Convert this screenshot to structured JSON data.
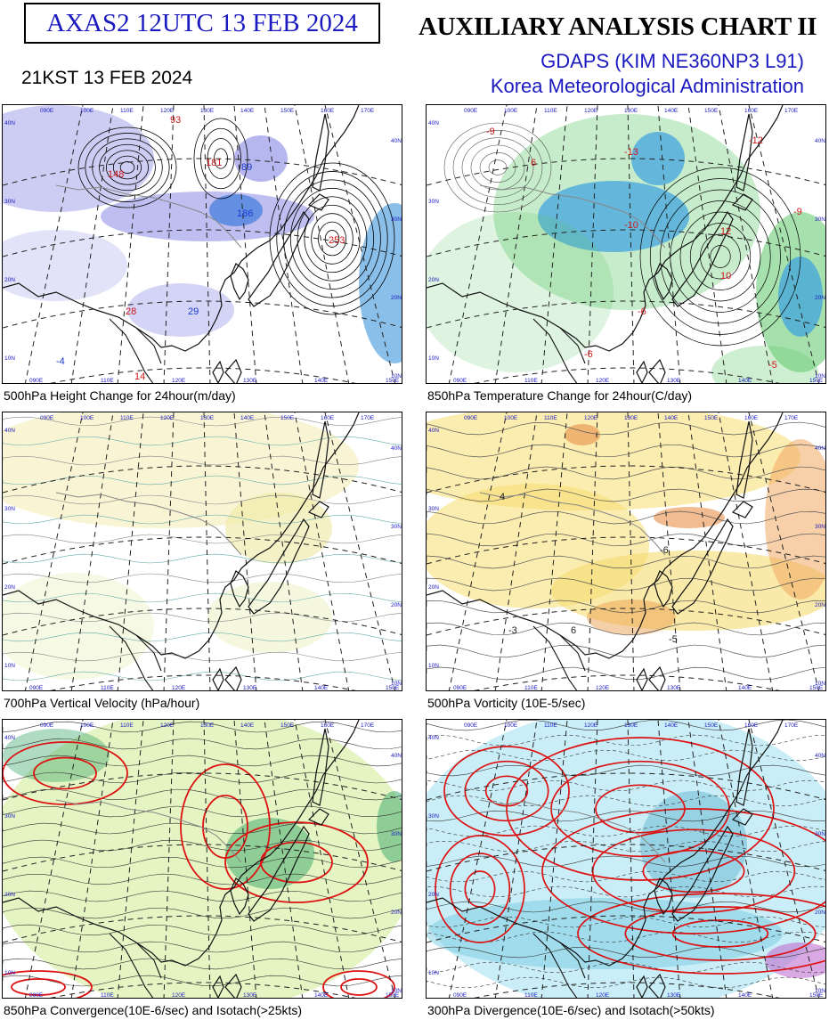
{
  "header": {
    "code_title": "AXAS2  12UTC 13 FEB 2024",
    "chart_title": "AUXILIARY ANALYSIS CHART II",
    "model": "GDAPS (KIM NE360NP3 L91)",
    "agency": "Korea Meteorological Administration",
    "local_time": "21KST 13 FEB 2024"
  },
  "panels": [
    {
      "caption": "500hPa Height Change for 24hour(m/day)",
      "style": "height",
      "labels": [
        "148",
        "181",
        "89",
        "186",
        "253",
        "28",
        "29",
        "-4",
        "14",
        "93"
      ]
    },
    {
      "caption": "850hPa Temperature Change for 24hour(C/day)",
      "style": "temp",
      "labels": [
        "-9",
        "6",
        "-10",
        "-13",
        "-12",
        "12",
        "10",
        "-6",
        "-5",
        "-9",
        "-6"
      ]
    },
    {
      "caption": "700hPa Vertical Velocity (hPa/hour)",
      "style": "vv",
      "labels": []
    },
    {
      "caption": "500hPa Vorticity (10E-5/sec)",
      "style": "vort",
      "labels": [
        "4",
        "-6",
        "-5",
        "-3",
        "6"
      ]
    },
    {
      "caption": "850hPa Convergence(10E-6/sec) and Isotach(>25kts)",
      "style": "conv",
      "labels": []
    },
    {
      "caption": "300hPa Divergence(10E-6/sec) and Isotach(>50kts)",
      "style": "div",
      "labels": []
    }
  ],
  "grid_labels": {
    "top": [
      "090E",
      "100E",
      "110E",
      "120E",
      "130E",
      "140E",
      "150E",
      "160E",
      "170E"
    ],
    "bottom": [
      "090E",
      "110E",
      "120E",
      "130E",
      "140E",
      "150E"
    ],
    "left": [
      "40N",
      "30N",
      "20N",
      "10N"
    ],
    "right": [
      "40N",
      "30N",
      "20N",
      "10N"
    ]
  },
  "colors": {
    "title_blue": "#1a1ac0",
    "fall_blue": "#6f6fe0",
    "cold_green": "#5cc86a",
    "vort_yellow": "#f7dc70",
    "conv_green": "#c6e67a",
    "div_cyan": "#9fe0f0",
    "isotach_red": "#dd1111"
  }
}
